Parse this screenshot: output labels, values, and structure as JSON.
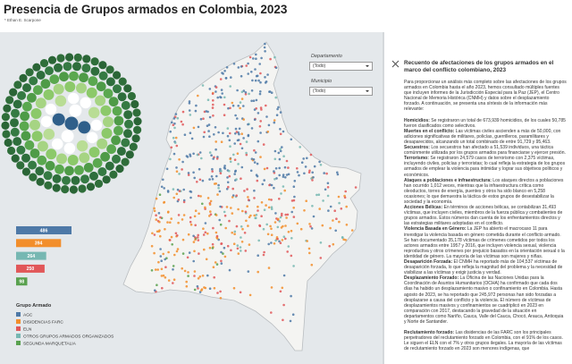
{
  "header": {
    "title": "Presencia de Grupos armados en Colombia, 2023",
    "subtitle": "* Ethan E. Scarpone"
  },
  "filters": [
    {
      "label": "Departamento",
      "value": "(Todo)"
    },
    {
      "label": "Municipio",
      "value": "(Todo)"
    }
  ],
  "bars": [
    {
      "value": 486,
      "color": "#4e79a7"
    },
    {
      "value": 394,
      "color": "#f28e2b"
    },
    {
      "value": 264,
      "color": "#76b7b2"
    },
    {
      "value": 250,
      "color": "#e15759"
    },
    {
      "value": 98,
      "color": "#59a14f"
    }
  ],
  "legend": {
    "title": "Grupo Armado",
    "items": [
      {
        "name": "AGC",
        "color": "#4e79a7"
      },
      {
        "name": "DISIDENCIAS FARC",
        "color": "#f28e2b"
      },
      {
        "name": "ELN",
        "color": "#e15759"
      },
      {
        "name": "OTROS GRUPOS ARMADOS ORGANIZADOS",
        "color": "#76b7b2"
      },
      {
        "name": "SEGUNDA MARQUETALIA",
        "color": "#59a14f"
      }
    ]
  },
  "panel": {
    "title": "Recuento de afectaciones de los grupos armados  en el marco del conflicto colombiano, 2023",
    "intro": "Para proporcionar un análisis más completo sobre las afectaciones de los grupos armados en Colombia hasta el año 2023, hemos consultado múltiples fuentes que incluyen informes de la Jurisdicción Especial para la Paz (JEP), el Centro Nacional de Memoria Histórica (CNMH) y datos sobre el desplazamiento forzado. A continuación, se presenta una síntesis de la información más relevante:",
    "sections": [
      [
        {
          "label": "Homicidios:",
          "text": "Se registraron un total de 673,939 homicidios, de los cuales 50,785 fueron clasificados como selectivos."
        },
        {
          "label": "Muertes en el conflicto:",
          "text": "Las víctimas civiles ascienden a más de 50,000, con adiciones significativas de militares, policías, guerrilleros, paramilitares y desaparecidos, alcanzando un total combinado de entre 91,729 y 95,463."
        },
        {
          "label": "Secuestros:",
          "text": "Los secuestros han afectado a 51,539 individuos, una táctica comúnmente utilizada por los grupos armados para financiarse y ejercer presión."
        },
        {
          "label": "Terrorismo:",
          "text": "Se registraron 24,579 casos de terrorismo con 2,375 víctimas, incluyendo civiles, policías y terroristas; lo cual refleja la estrategia de los grupos armados de emplear la violencia para intimidar y lograr sus objetivos políticos y económicos."
        },
        {
          "label": "Ataques a poblaciones e infraestructura:",
          "text": "Los ataques directos a poblaciones han ocurrido 1,012 veces, mientras que la infraestructura crítica como oleoductos, torres de energía, puentes y otros ha sido blanco en 5,258 ocasiones; lo que demuestra la táctica de estos grupos de desestabilizar la sociedad y la economía."
        },
        {
          "label": "Acciones Bélicas:",
          "text": "En términos de acciones bélicas, se contabilizan 31,493 víctimas, que incluyen civiles, miembros de la fuerza pública y combatientes de grupos armados. Estos números dan cuenta de los enfrentamientos directos y las estrategias militares adoptadas en el conflicto."
        },
        {
          "label": "Violencia Basada en Género:",
          "text": "La JEP ha abierto el macrocaso 11 para investigar la violencia basada en género cometida durante el conflicto armado. Se han documentado 35,178 víctimas de crímenes cometidos por todos los actores armados entre 1957 y 2016, que incluyen violencia sexual, violencia reproductiva y otros crímenes por prejuicio basados en la orientación sexual o la identidad de género. La mayoría de las víctimas son mujeres y niñas."
        },
        {
          "label": "Desaparición Forzada:",
          "text": "El CNMH ha reportado más de 104,537 víctimas de desaparición forzada, lo que refleja la magnitud del problema y la necesidad de visibilizar a las víctimas y exigir justicia y verdad."
        },
        {
          "label": "Desplazamiento Forzado:",
          "text": "La Oficina de las Naciones Unidas para la Coordinación de Asuntos Humanitarios (OCHA) ha confirmado que cada dos días ha habido un desplazamiento masivo o confinamiento en Colombia. Hasta agosto de 2023, se ha reportado que 245,972 personas han sido forzadas a desplazarse a causa del conflicto y la violencia. El número de víctimas de desplazamientos masivos y confinamientos se cuadriplicó en 2023 en comparación con 2017, destacando la gravedad de la situación en departamentos como Nariño, Cauca, Valle del Cauca, Chocó, Arauca, Antioquia y Norte de Santander."
        }
      ],
      [
        {
          "label": "Reclutamiento forzado:",
          "text": "Las disidencias de las FARC son los principales perpetradores del reclutamiento forzado en Colombia, con el 91% de los casos. Le siguen el ELN con el 7% y otros grupos ilegales. La mayoría de las víctimas de reclutamiento forzado en 2023 son menores indígenas, que"
        }
      ]
    ]
  }
}
